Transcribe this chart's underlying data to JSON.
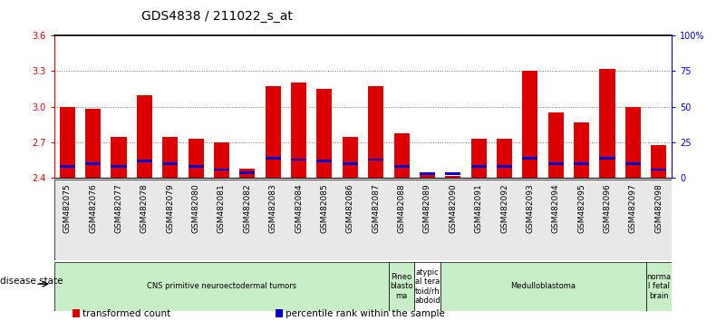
{
  "title": "GDS4838 / 211022_s_at",
  "samples": [
    "GSM482075",
    "GSM482076",
    "GSM482077",
    "GSM482078",
    "GSM482079",
    "GSM482080",
    "GSM482081",
    "GSM482082",
    "GSM482083",
    "GSM482084",
    "GSM482085",
    "GSM482086",
    "GSM482087",
    "GSM482088",
    "GSM482089",
    "GSM482090",
    "GSM482091",
    "GSM482092",
    "GSM482093",
    "GSM482094",
    "GSM482095",
    "GSM482096",
    "GSM482097",
    "GSM482098"
  ],
  "transformed_count": [
    3.0,
    2.98,
    2.75,
    3.1,
    2.75,
    2.73,
    2.7,
    2.48,
    3.17,
    3.2,
    3.15,
    2.75,
    3.17,
    2.78,
    2.43,
    2.42,
    2.73,
    2.73,
    3.3,
    2.95,
    2.87,
    3.32,
    3.0,
    2.68
  ],
  "percentile_rank": [
    8,
    10,
    8,
    12,
    10,
    8,
    6,
    4,
    14,
    13,
    12,
    10,
    13,
    8,
    3,
    3,
    8,
    8,
    14,
    10,
    10,
    14,
    10,
    6
  ],
  "ylim_left": [
    2.4,
    3.6
  ],
  "ylim_right": [
    0,
    100
  ],
  "yticks_left": [
    2.4,
    2.7,
    3.0,
    3.3,
    3.6
  ],
  "ytick_labels_left": [
    "2.4",
    "2.7",
    "3.0",
    "3.3",
    "3.6"
  ],
  "yticks_right": [
    0,
    25,
    50,
    75,
    100
  ],
  "ytick_labels_right": [
    "0",
    "25",
    "50",
    "75",
    "100%"
  ],
  "bar_color": "#dd0000",
  "percentile_color": "#0000cc",
  "bar_width": 0.6,
  "disease_groups": [
    {
      "label": "CNS primitive neuroectodermal tumors",
      "start": 0,
      "end": 13,
      "color": "#c8eec8"
    },
    {
      "label": "Pineo\nblasto\nma",
      "start": 13,
      "end": 14,
      "color": "#c8eec8"
    },
    {
      "label": "atypic\nal tera\ntoid/rh\nabdoid",
      "start": 14,
      "end": 15,
      "color": "#ffffff"
    },
    {
      "label": "Medulloblastoma",
      "start": 15,
      "end": 23,
      "color": "#c8eec8"
    },
    {
      "label": "norma\nl fetal\nbrain",
      "start": 23,
      "end": 24,
      "color": "#c8eec8"
    }
  ],
  "legend_items": [
    {
      "label": "transformed count",
      "color": "#dd0000"
    },
    {
      "label": "percentile rank within the sample",
      "color": "#0000cc"
    }
  ],
  "disease_state_label": "disease state",
  "title_fontsize": 10,
  "tick_fontsize": 7,
  "label_fontsize": 8
}
